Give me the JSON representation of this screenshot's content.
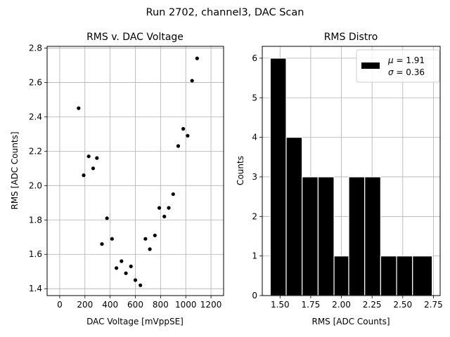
{
  "suptitle": "Run 2702, channel3, DAC Scan",
  "chart_data": [
    {
      "type": "scatter",
      "title": "RMS v. DAC Voltage",
      "xlabel": "DAC Voltage [mVppSE]",
      "ylabel": "RMS [ADC Counts]",
      "xlim": [
        -100,
        1300
      ],
      "ylim": [
        1.36,
        2.81
      ],
      "xticks": [
        0,
        200,
        400,
        600,
        800,
        1000,
        1200
      ],
      "xtick_labels": [
        "0",
        "200",
        "400",
        "600",
        "800",
        "1000",
        "1200"
      ],
      "yticks": [
        1.4,
        1.6,
        1.8,
        2.0,
        2.2,
        2.4,
        2.6,
        2.8
      ],
      "ytick_labels": [
        "1.4",
        "1.6",
        "1.8",
        "2.0",
        "2.2",
        "2.4",
        "2.6",
        "2.8"
      ],
      "grid": true,
      "marker_color": "#000000",
      "points": [
        {
          "x": 150,
          "y": 2.45
        },
        {
          "x": 190,
          "y": 2.06
        },
        {
          "x": 230,
          "y": 2.17
        },
        {
          "x": 265,
          "y": 2.1
        },
        {
          "x": 295,
          "y": 2.16
        },
        {
          "x": 335,
          "y": 1.66
        },
        {
          "x": 375,
          "y": 1.81
        },
        {
          "x": 415,
          "y": 1.69
        },
        {
          "x": 450,
          "y": 1.52
        },
        {
          "x": 490,
          "y": 1.56
        },
        {
          "x": 525,
          "y": 1.49
        },
        {
          "x": 565,
          "y": 1.53
        },
        {
          "x": 600,
          "y": 1.45
        },
        {
          "x": 640,
          "y": 1.42
        },
        {
          "x": 680,
          "y": 1.69
        },
        {
          "x": 715,
          "y": 1.63
        },
        {
          "x": 755,
          "y": 1.71
        },
        {
          "x": 790,
          "y": 1.87
        },
        {
          "x": 830,
          "y": 1.82
        },
        {
          "x": 865,
          "y": 1.87
        },
        {
          "x": 900,
          "y": 1.95
        },
        {
          "x": 940,
          "y": 2.23
        },
        {
          "x": 980,
          "y": 2.33
        },
        {
          "x": 1015,
          "y": 2.29
        },
        {
          "x": 1050,
          "y": 2.61
        },
        {
          "x": 1090,
          "y": 2.74
        }
      ]
    },
    {
      "type": "bar",
      "subtype": "histogram",
      "title": "RMS Distro",
      "xlabel": "RMS [ADC Counts]",
      "ylabel": "Counts",
      "xlim": [
        1.355,
        2.805
      ],
      "ylim": [
        0,
        6.3
      ],
      "xticks": [
        1.5,
        1.75,
        2.0,
        2.25,
        2.5,
        2.75
      ],
      "xtick_labels": [
        "1.50",
        "1.75",
        "2.00",
        "2.25",
        "2.50",
        "2.75"
      ],
      "yticks": [
        0,
        1,
        2,
        3,
        4,
        5,
        6
      ],
      "ytick_labels": [
        "0",
        "1",
        "2",
        "3",
        "4",
        "5",
        "6"
      ],
      "grid": true,
      "bar_color": "#000000",
      "edge_color": "#ffffff",
      "bins": [
        {
          "start": 1.42,
          "end": 1.55,
          "count": 6
        },
        {
          "start": 1.55,
          "end": 1.68,
          "count": 4
        },
        {
          "start": 1.68,
          "end": 1.81,
          "count": 3
        },
        {
          "start": 1.81,
          "end": 1.94,
          "count": 3
        },
        {
          "start": 1.94,
          "end": 2.06,
          "count": 1
        },
        {
          "start": 2.06,
          "end": 2.19,
          "count": 3
        },
        {
          "start": 2.19,
          "end": 2.32,
          "count": 3
        },
        {
          "start": 2.32,
          "end": 2.45,
          "count": 1
        },
        {
          "start": 2.45,
          "end": 2.58,
          "count": 1
        },
        {
          "start": 2.58,
          "end": 2.74,
          "count": 1
        }
      ],
      "legend": {
        "placement": "top-right",
        "mu_symbol": "μ",
        "mu_text": " = 1.91",
        "sigma_symbol": "σ",
        "sigma_text": " = 0.36"
      }
    }
  ]
}
